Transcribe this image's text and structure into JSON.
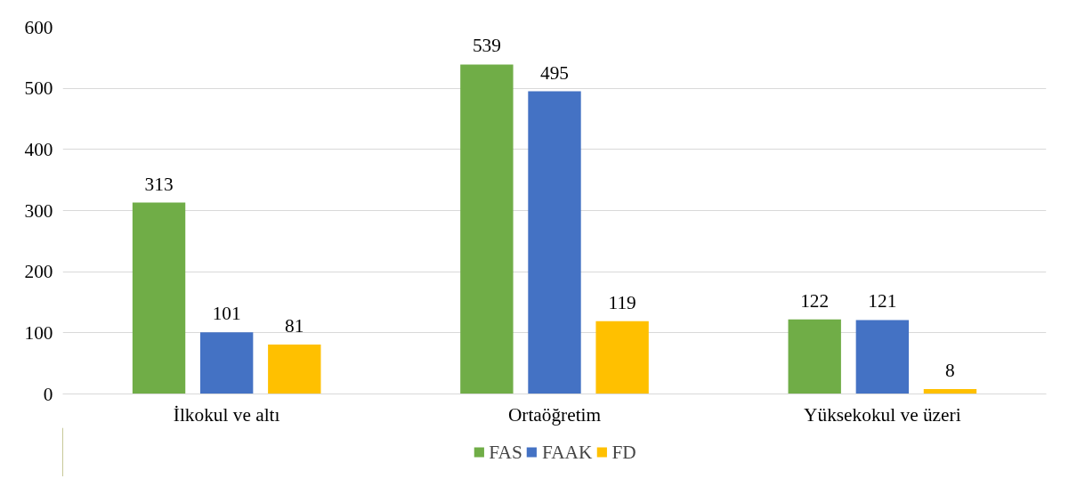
{
  "chart_data": {
    "type": "bar",
    "categories": [
      "İlkokul ve altı",
      "Ortaöğretim",
      "Yüksekokul ve üzeri"
    ],
    "series": [
      {
        "name": "FAS",
        "color": "#70ad47",
        "values": [
          313,
          539,
          122
        ]
      },
      {
        "name": "FAAK",
        "color": "#4472c4",
        "values": [
          101,
          495,
          121
        ]
      },
      {
        "name": "FD",
        "color": "#ffc000",
        "values": [
          81,
          119,
          8
        ]
      }
    ],
    "ylim": [
      0,
      600
    ],
    "yticks": [
      0,
      100,
      200,
      300,
      400,
      500,
      600
    ],
    "grid": "y",
    "legend": "bottom",
    "data_labels": true
  }
}
